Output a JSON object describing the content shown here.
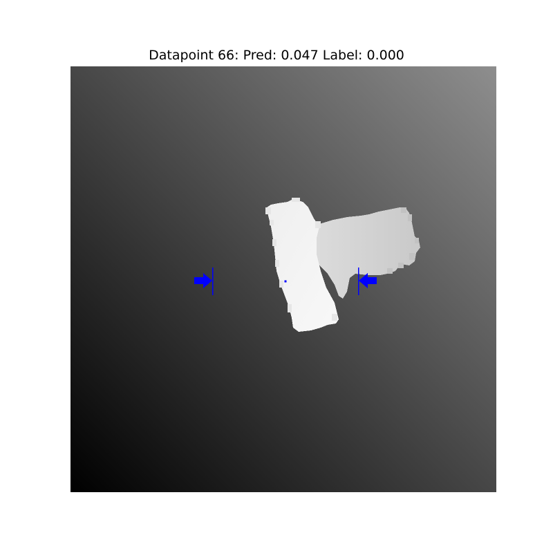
{
  "title": {
    "prefix": "Datapoint",
    "datapoint": "66",
    "pred_label": "Pred:",
    "pred_value": "0.047",
    "label_label": "Label:",
    "label_value": "0.000"
  },
  "colors": {
    "background": "#ffffff",
    "gradient_dark": "#000000",
    "gradient_light": "#8e8e8e",
    "object_light": "#f4f4f4",
    "object_mid": "#d9d9d9",
    "marker": "#0000ff"
  },
  "image": {
    "kind": "grayscale depth image with grasp marker",
    "grasp_marker": {
      "style": "two arrows pointing inward with perpendicular jaw lines",
      "color": "#0000ff"
    }
  }
}
